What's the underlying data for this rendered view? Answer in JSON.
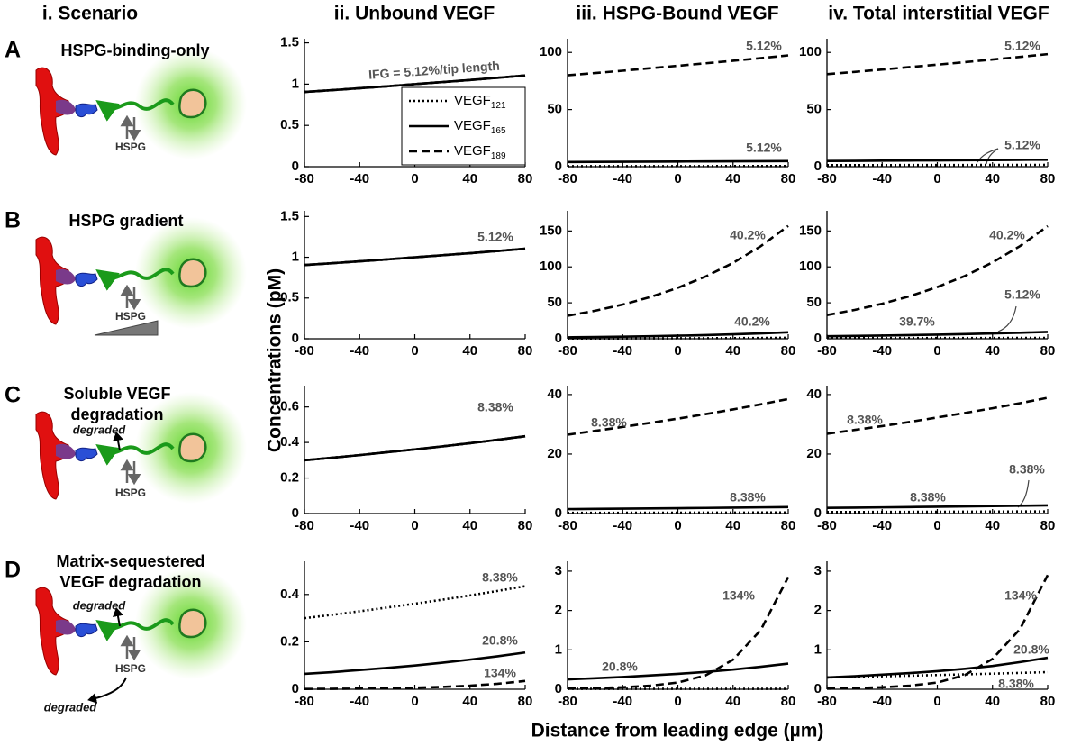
{
  "figure": {
    "column_headers": [
      "i. Scenario",
      "ii. Unbound VEGF",
      "iii. HSPG-Bound VEGF",
      "iv. Total interstitial VEGF"
    ],
    "rows": [
      {
        "letter": "A",
        "scenario": [
          "HSPG-binding-only"
        ],
        "labels": [
          "HSPG"
        ]
      },
      {
        "letter": "B",
        "scenario": [
          "HSPG gradient"
        ],
        "labels": [
          "HSPG"
        ]
      },
      {
        "letter": "C",
        "scenario": [
          "Soluble VEGF",
          "degradation"
        ],
        "labels": [
          "degraded",
          "HSPG"
        ]
      },
      {
        "letter": "D",
        "scenario": [
          "Matrix-sequestered",
          "VEGF degradation"
        ],
        "labels": [
          "degraded",
          "HSPG",
          "degraded"
        ]
      }
    ],
    "ylabel": "Concentrations (pM)",
    "xlabel": "Distance from leading edge (µm)"
  },
  "chart_data": [
    {
      "type": "line",
      "x": [
        -80,
        -60,
        -40,
        -20,
        0,
        20,
        40,
        60,
        80
      ],
      "xlim": [
        -80,
        80
      ],
      "xticks": [
        -80,
        -40,
        0,
        40,
        80
      ],
      "ylim": [
        0,
        1.55
      ],
      "yticks": [
        0,
        0.5,
        1,
        1.5
      ],
      "series": [
        {
          "name": "VEGF121",
          "style": "dotted",
          "color": "#000000",
          "values": [
            0.905,
            0.927,
            0.95,
            0.974,
            1.0,
            1.025,
            1.05,
            1.077,
            1.105
          ]
        },
        {
          "name": "VEGF165",
          "style": "solid",
          "color": "#000000",
          "values": [
            0.905,
            0.927,
            0.95,
            0.974,
            1.0,
            1.025,
            1.05,
            1.077,
            1.105
          ]
        },
        {
          "name": "VEGF189",
          "style": "dashed",
          "color": "#000000",
          "values": [
            0.905,
            0.927,
            0.95,
            0.974,
            1.0,
            1.025,
            1.05,
            1.077,
            1.105
          ]
        }
      ],
      "annotations": [
        "IFG = 5.12%/tip length"
      ]
    },
    {
      "type": "line",
      "x": [
        -80,
        -60,
        -40,
        -20,
        0,
        20,
        40,
        60,
        80
      ],
      "xlim": [
        -80,
        80
      ],
      "xticks": [
        -80,
        -40,
        0,
        40,
        80
      ],
      "ylim": [
        0,
        112
      ],
      "yticks": [
        0,
        50,
        100
      ],
      "series": [
        {
          "style": "dotted",
          "color": "#000000",
          "values": [
            0.45,
            0.46,
            0.47,
            0.48,
            0.49,
            0.5,
            0.51,
            0.53,
            0.54
          ]
        },
        {
          "style": "solid",
          "color": "#000000",
          "values": [
            4.1,
            4.2,
            4.3,
            4.4,
            4.5,
            4.6,
            4.7,
            4.8,
            4.9
          ]
        },
        {
          "style": "dashed",
          "color": "#000000",
          "values": [
            80,
            82,
            84,
            86.2,
            88.3,
            90.5,
            92.7,
            95,
            97.4
          ]
        }
      ],
      "annotations": [
        "5.12%",
        "5.12%"
      ]
    },
    {
      "type": "line",
      "x": [
        -80,
        -60,
        -40,
        -20,
        0,
        20,
        40,
        60,
        80
      ],
      "xlim": [
        -80,
        80
      ],
      "xticks": [
        -80,
        -40,
        0,
        40,
        80
      ],
      "ylim": [
        0,
        112
      ],
      "yticks": [
        0,
        50,
        100
      ],
      "series": [
        {
          "style": "dotted",
          "color": "#000000",
          "values": [
            1.3,
            1.33,
            1.37,
            1.4,
            1.44,
            1.47,
            1.51,
            1.55,
            1.59
          ]
        },
        {
          "style": "solid",
          "color": "#000000",
          "values": [
            5.0,
            5.1,
            5.3,
            5.4,
            5.5,
            5.7,
            5.8,
            6.0,
            6.1
          ]
        },
        {
          "style": "dashed",
          "color": "#000000",
          "values": [
            81,
            83,
            85,
            87.2,
            89.3,
            91.5,
            93.8,
            96.1,
            98.5
          ]
        }
      ],
      "annotations": [
        "5.12%",
        "5.12%"
      ]
    },
    {
      "type": "line",
      "x": [
        -80,
        -60,
        -40,
        -20,
        0,
        20,
        40,
        60,
        80
      ],
      "xlim": [
        -80,
        80
      ],
      "xticks": [
        -80,
        -40,
        0,
        40,
        80
      ],
      "ylim": [
        0,
        1.57
      ],
      "yticks": [
        0,
        0.5,
        1,
        1.5
      ],
      "series": [
        {
          "style": "dotted",
          "color": "#000000",
          "values": [
            0.905,
            0.927,
            0.95,
            0.974,
            1.0,
            1.025,
            1.05,
            1.077,
            1.105
          ]
        },
        {
          "style": "solid",
          "color": "#000000",
          "values": [
            0.905,
            0.927,
            0.95,
            0.974,
            1.0,
            1.025,
            1.05,
            1.077,
            1.105
          ]
        },
        {
          "style": "dashed",
          "color": "#000000",
          "values": [
            0.905,
            0.927,
            0.95,
            0.974,
            1.0,
            1.025,
            1.05,
            1.077,
            1.105
          ]
        }
      ],
      "annotations": [
        "5.12%"
      ]
    },
    {
      "type": "line",
      "x": [
        -80,
        -60,
        -40,
        -20,
        0,
        20,
        40,
        60,
        80
      ],
      "xlim": [
        -80,
        80
      ],
      "xticks": [
        -80,
        -40,
        0,
        40,
        80
      ],
      "ylim": [
        0,
        178
      ],
      "yticks": [
        0,
        50,
        100,
        150
      ],
      "series": [
        {
          "style": "dotted",
          "color": "#000000",
          "values": [
            0.3,
            0.36,
            0.44,
            0.53,
            0.64,
            0.77,
            0.93,
            1.1,
            1.35
          ]
        },
        {
          "style": "solid",
          "color": "#000000",
          "values": [
            2,
            2.41,
            2.91,
            3.52,
            4.25,
            5.13,
            6.19,
            7.47,
            9
          ]
        },
        {
          "style": "dashed",
          "color": "#000000",
          "values": [
            32,
            39,
            47.6,
            58,
            70.9,
            86.5,
            105.5,
            128.7,
            157
          ]
        }
      ],
      "annotations": [
        "40.2%",
        "40.2%"
      ]
    },
    {
      "type": "line",
      "x": [
        -80,
        -60,
        -40,
        -20,
        0,
        20,
        40,
        60,
        80
      ],
      "xlim": [
        -80,
        80
      ],
      "xticks": [
        -80,
        -40,
        0,
        40,
        80
      ],
      "ylim": [
        0,
        178
      ],
      "yticks": [
        0,
        50,
        100,
        150
      ],
      "series": [
        {
          "style": "dotted",
          "color": "#000000",
          "values": [
            0.95,
            0.97,
            1.0,
            1.02,
            1.05,
            1.08,
            1.1,
            1.13,
            1.16
          ]
        },
        {
          "style": "solid",
          "color": "#000000",
          "values": [
            3.5,
            3.97,
            4.49,
            5.09,
            5.77,
            6.53,
            7.4,
            8.39,
            9.5
          ]
        },
        {
          "style": "dashed",
          "color": "#000000",
          "values": [
            33,
            40.1,
            48.7,
            59.2,
            71.9,
            87.4,
            106.2,
            129,
            156.7
          ]
        }
      ],
      "annotations": [
        "40.2%",
        "5.12%",
        "39.7%"
      ]
    },
    {
      "type": "line",
      "x": [
        -80,
        -60,
        -40,
        -20,
        0,
        20,
        40,
        60,
        80
      ],
      "xlim": [
        -80,
        80
      ],
      "xticks": [
        -80,
        -40,
        0,
        40,
        80
      ],
      "ylim": [
        0,
        0.72
      ],
      "yticks": [
        0,
        0.2,
        0.4,
        0.6
      ],
      "series": [
        {
          "style": "dotted",
          "color": "#000000",
          "values": [
            0.3,
            0.314,
            0.329,
            0.345,
            0.361,
            0.378,
            0.396,
            0.415,
            0.435
          ]
        },
        {
          "style": "solid",
          "color": "#000000",
          "values": [
            0.3,
            0.314,
            0.329,
            0.345,
            0.361,
            0.378,
            0.396,
            0.415,
            0.435
          ]
        },
        {
          "style": "dashed",
          "color": "#000000",
          "values": [
            0.3,
            0.314,
            0.329,
            0.345,
            0.361,
            0.378,
            0.396,
            0.415,
            0.435
          ]
        }
      ],
      "annotations": [
        "8.38%"
      ]
    },
    {
      "type": "line",
      "x": [
        -80,
        -60,
        -40,
        -20,
        0,
        20,
        40,
        60,
        80
      ],
      "xlim": [
        -80,
        80
      ],
      "xticks": [
        -80,
        -40,
        0,
        40,
        80
      ],
      "ylim": [
        0,
        43
      ],
      "yticks": [
        0,
        20,
        40
      ],
      "series": [
        {
          "style": "dotted",
          "color": "#000000",
          "values": [
            0.25,
            0.26,
            0.27,
            0.29,
            0.3,
            0.32,
            0.33,
            0.35,
            0.36
          ]
        },
        {
          "style": "solid",
          "color": "#000000",
          "values": [
            1.5,
            1.57,
            1.65,
            1.72,
            1.81,
            1.89,
            1.98,
            2.08,
            2.18
          ]
        },
        {
          "style": "dashed",
          "color": "#000000",
          "values": [
            26.5,
            27.8,
            29.1,
            30.5,
            31.9,
            33.4,
            35,
            36.7,
            38.5
          ]
        }
      ],
      "annotations": [
        "8.38%",
        "8.38%"
      ]
    },
    {
      "type": "line",
      "x": [
        -80,
        -60,
        -40,
        -20,
        0,
        20,
        40,
        60,
        80
      ],
      "xlim": [
        -80,
        80
      ],
      "xticks": [
        -80,
        -40,
        0,
        40,
        80
      ],
      "ylim": [
        0,
        43
      ],
      "yticks": [
        0,
        20,
        40
      ],
      "series": [
        {
          "style": "dotted",
          "color": "#000000",
          "values": [
            0.5,
            0.52,
            0.55,
            0.57,
            0.6,
            0.63,
            0.66,
            0.69,
            0.72
          ]
        },
        {
          "style": "solid",
          "color": "#000000",
          "values": [
            1.9,
            1.99,
            2.08,
            2.18,
            2.29,
            2.4,
            2.51,
            2.63,
            2.76
          ]
        },
        {
          "style": "dashed",
          "color": "#000000",
          "values": [
            26.8,
            28.1,
            29.4,
            30.8,
            32.3,
            33.8,
            35.4,
            37.1,
            38.9
          ]
        }
      ],
      "annotations": [
        "8.38%",
        "8.38%",
        "8.38%"
      ]
    },
    {
      "type": "line",
      "x": [
        -80,
        -60,
        -40,
        -20,
        0,
        20,
        40,
        60,
        80
      ],
      "xlim": [
        -80,
        80
      ],
      "xticks": [
        -80,
        -40,
        0,
        40,
        80
      ],
      "ylim": [
        0,
        0.54
      ],
      "yticks": [
        0,
        0.2,
        0.4
      ],
      "series": [
        {
          "style": "dotted",
          "color": "#000000",
          "values": [
            0.3,
            0.314,
            0.329,
            0.345,
            0.361,
            0.378,
            0.396,
            0.415,
            0.435
          ]
        },
        {
          "style": "solid",
          "color": "#000000",
          "values": [
            0.065,
            0.072,
            0.081,
            0.09,
            0.1,
            0.112,
            0.125,
            0.139,
            0.155
          ]
        },
        {
          "style": "dashed",
          "color": "#000000",
          "values": [
            0.0012,
            0.0018,
            0.0027,
            0.0042,
            0.0064,
            0.0098,
            0.015,
            0.0229,
            0.035
          ]
        }
      ],
      "annotations": [
        "8.38%",
        "20.8%",
        "134%"
      ]
    },
    {
      "type": "line",
      "x": [
        -80,
        -60,
        -40,
        -20,
        0,
        20,
        40,
        60,
        80
      ],
      "xlim": [
        -80,
        80
      ],
      "xticks": [
        -80,
        -40,
        0,
        40,
        80
      ],
      "ylim": [
        0,
        3.25
      ],
      "yticks": [
        0,
        1,
        2,
        3
      ],
      "series": [
        {
          "style": "dotted",
          "color": "#000000",
          "values": [
            0.01,
            0.01,
            0.01,
            0.01,
            0.01,
            0.01,
            0.01,
            0.01,
            0.01
          ]
        },
        {
          "style": "solid",
          "color": "#000000",
          "values": [
            0.25,
            0.28,
            0.31,
            0.35,
            0.39,
            0.44,
            0.5,
            0.57,
            0.65
          ]
        },
        {
          "style": "dashed",
          "color": "#000000",
          "values": [
            0.02,
            0.03,
            0.05,
            0.09,
            0.17,
            0.35,
            0.75,
            1.5,
            2.85
          ]
        }
      ],
      "annotations": [
        "134%",
        "20.8%"
      ]
    },
    {
      "type": "line",
      "x": [
        -80,
        -60,
        -40,
        -20,
        0,
        20,
        40,
        60,
        80
      ],
      "xlim": [
        -80,
        80
      ],
      "xticks": [
        -80,
        -40,
        0,
        40,
        80
      ],
      "ylim": [
        0,
        3.25
      ],
      "yticks": [
        0,
        1,
        2,
        3
      ],
      "series": [
        {
          "style": "dotted",
          "color": "#000000",
          "values": [
            0.3,
            0.314,
            0.329,
            0.345,
            0.361,
            0.378,
            0.396,
            0.415,
            0.435
          ]
        },
        {
          "style": "solid",
          "color": "#000000",
          "values": [
            0.3,
            0.33,
            0.37,
            0.41,
            0.46,
            0.52,
            0.59,
            0.69,
            0.8
          ]
        },
        {
          "style": "dashed",
          "color": "#000000",
          "values": [
            0.02,
            0.03,
            0.05,
            0.09,
            0.17,
            0.36,
            0.77,
            1.53,
            2.9
          ]
        }
      ],
      "annotations": [
        "134%",
        "20.8%",
        "8.38%"
      ]
    }
  ]
}
